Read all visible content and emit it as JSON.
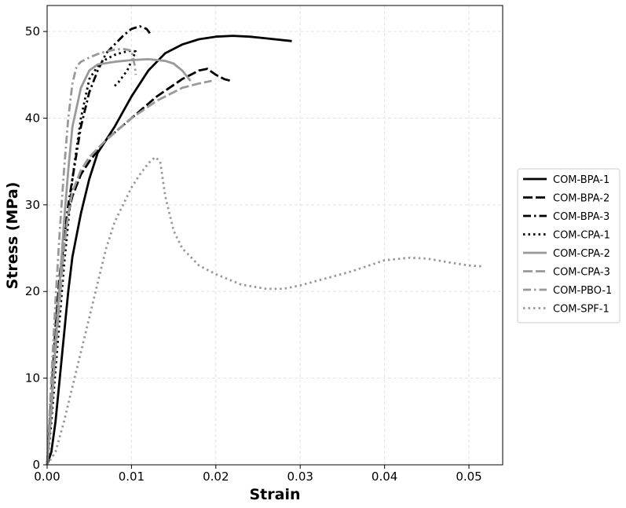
{
  "chart_data": {
    "type": "line",
    "xlabel": "Strain",
    "ylabel": "Stress (MPa)",
    "xlim": [
      0,
      0.054
    ],
    "ylim": [
      0,
      53
    ],
    "xticks": [
      0.0,
      0.01,
      0.02,
      0.03,
      0.04,
      0.05
    ],
    "xtick_labels": [
      "0.00",
      "0.01",
      "0.02",
      "0.03",
      "0.04",
      "0.05"
    ],
    "yticks": [
      0,
      10,
      20,
      30,
      40,
      50
    ],
    "ytick_labels": [
      "0",
      "10",
      "20",
      "30",
      "40",
      "50"
    ],
    "grid": true,
    "legend_position": "right, outside plot",
    "series": [
      {
        "name": "COM-BPA-1",
        "color": "#000000",
        "style": "solid",
        "x": [
          0.0,
          0.0005,
          0.001,
          0.0015,
          0.002,
          0.0025,
          0.003,
          0.004,
          0.005,
          0.006,
          0.007,
          0.008,
          0.01,
          0.012,
          0.014,
          0.016,
          0.018,
          0.02,
          0.022,
          0.024,
          0.026,
          0.028,
          0.029
        ],
        "y": [
          0,
          1.5,
          5,
          10,
          15,
          20,
          24,
          29,
          33,
          36,
          37.5,
          39,
          42.5,
          45.5,
          47.5,
          48.5,
          49.1,
          49.4,
          49.5,
          49.4,
          49.2,
          49.0,
          48.9
        ]
      },
      {
        "name": "COM-BPA-2",
        "color": "#000000",
        "style": "long-dash",
        "x": [
          0.0,
          0.0005,
          0.001,
          0.0015,
          0.002,
          0.0025,
          0.003,
          0.004,
          0.005,
          0.007,
          0.01,
          0.013,
          0.016,
          0.018,
          0.019,
          0.02,
          0.021,
          0.0218
        ],
        "y": [
          0,
          8,
          16,
          22,
          26,
          29,
          31,
          33.5,
          35,
          37.5,
          40,
          42.5,
          44.5,
          45.5,
          45.7,
          45.0,
          44.5,
          44.3
        ]
      },
      {
        "name": "COM-BPA-3",
        "color": "#000000",
        "style": "dash-dot",
        "x": [
          0.0,
          0.0005,
          0.001,
          0.0015,
          0.002,
          0.0025,
          0.003,
          0.004,
          0.005,
          0.006,
          0.007,
          0.008,
          0.009,
          0.01,
          0.011,
          0.0118,
          0.0124
        ],
        "y": [
          0,
          8,
          15,
          21,
          26,
          30,
          33,
          39,
          43,
          45.5,
          47.5,
          48.5,
          49.5,
          50.3,
          50.6,
          50.3,
          49.5
        ]
      },
      {
        "name": "COM-CPA-1",
        "color": "#000000",
        "style": "dotted",
        "x": [
          0.0,
          0.0005,
          0.001,
          0.0015,
          0.002,
          0.0025,
          0.003,
          0.004,
          0.005,
          0.006,
          0.007,
          0.008,
          0.009,
          0.01,
          0.0105,
          0.0095,
          0.0085,
          0.0078
        ],
        "y": [
          0,
          5,
          11,
          17,
          23,
          28,
          33,
          40,
          44.5,
          46,
          46.8,
          47.3,
          47.6,
          47.8,
          47.7,
          45.5,
          44.2,
          43.5
        ]
      },
      {
        "name": "COM-CPA-2",
        "color": "#999999",
        "style": "solid",
        "x": [
          0.0,
          0.0005,
          0.001,
          0.0015,
          0.002,
          0.0025,
          0.003,
          0.004,
          0.005,
          0.006,
          0.008,
          0.01,
          0.012,
          0.014,
          0.015,
          0.016,
          0.017
        ],
        "y": [
          0,
          7,
          14,
          21,
          28,
          34,
          39,
          43.5,
          45.5,
          46.2,
          46.5,
          46.7,
          46.8,
          46.6,
          46.3,
          45.5,
          44.3
        ]
      },
      {
        "name": "COM-CPA-3",
        "color": "#999999",
        "style": "long-dash",
        "x": [
          0.0,
          0.0005,
          0.001,
          0.0015,
          0.002,
          0.0025,
          0.003,
          0.004,
          0.005,
          0.007,
          0.01,
          0.013,
          0.016,
          0.018,
          0.0195
        ],
        "y": [
          0,
          6,
          13,
          19,
          25,
          29,
          31.5,
          34,
          35.5,
          37.5,
          40,
          42,
          43.5,
          44.0,
          44.3
        ]
      },
      {
        "name": "COM-PBO-1",
        "color": "#999999",
        "style": "dash-dot",
        "x": [
          0.0,
          0.0005,
          0.001,
          0.0015,
          0.002,
          0.0025,
          0.003,
          0.0035,
          0.004,
          0.005,
          0.006,
          0.007,
          0.008,
          0.009,
          0.01,
          0.0104,
          0.0105
        ],
        "y": [
          0,
          10,
          19,
          27,
          34,
          40,
          44,
          46,
          46.5,
          47,
          47.4,
          47.7,
          47.9,
          48.0,
          47.8,
          46.0,
          45.0
        ]
      },
      {
        "name": "COM-SPF-1",
        "color": "#999999",
        "style": "dotted",
        "x": [
          0.0,
          0.001,
          0.002,
          0.003,
          0.004,
          0.005,
          0.006,
          0.007,
          0.008,
          0.009,
          0.01,
          0.011,
          0.012,
          0.0128,
          0.0134,
          0.014,
          0.015,
          0.016,
          0.018,
          0.02,
          0.023,
          0.026,
          0.028,
          0.03,
          0.033,
          0.036,
          0.04,
          0.043,
          0.045,
          0.048,
          0.05,
          0.0515
        ],
        "y": [
          0,
          1.5,
          5,
          9,
          13,
          17,
          21,
          25,
          28,
          30,
          32,
          33.5,
          34.8,
          35.5,
          35,
          31,
          27,
          25,
          23,
          22,
          20.8,
          20.3,
          20.3,
          20.7,
          21.5,
          22.3,
          23.6,
          23.9,
          23.8,
          23.3,
          23.0,
          22.9
        ]
      }
    ]
  }
}
